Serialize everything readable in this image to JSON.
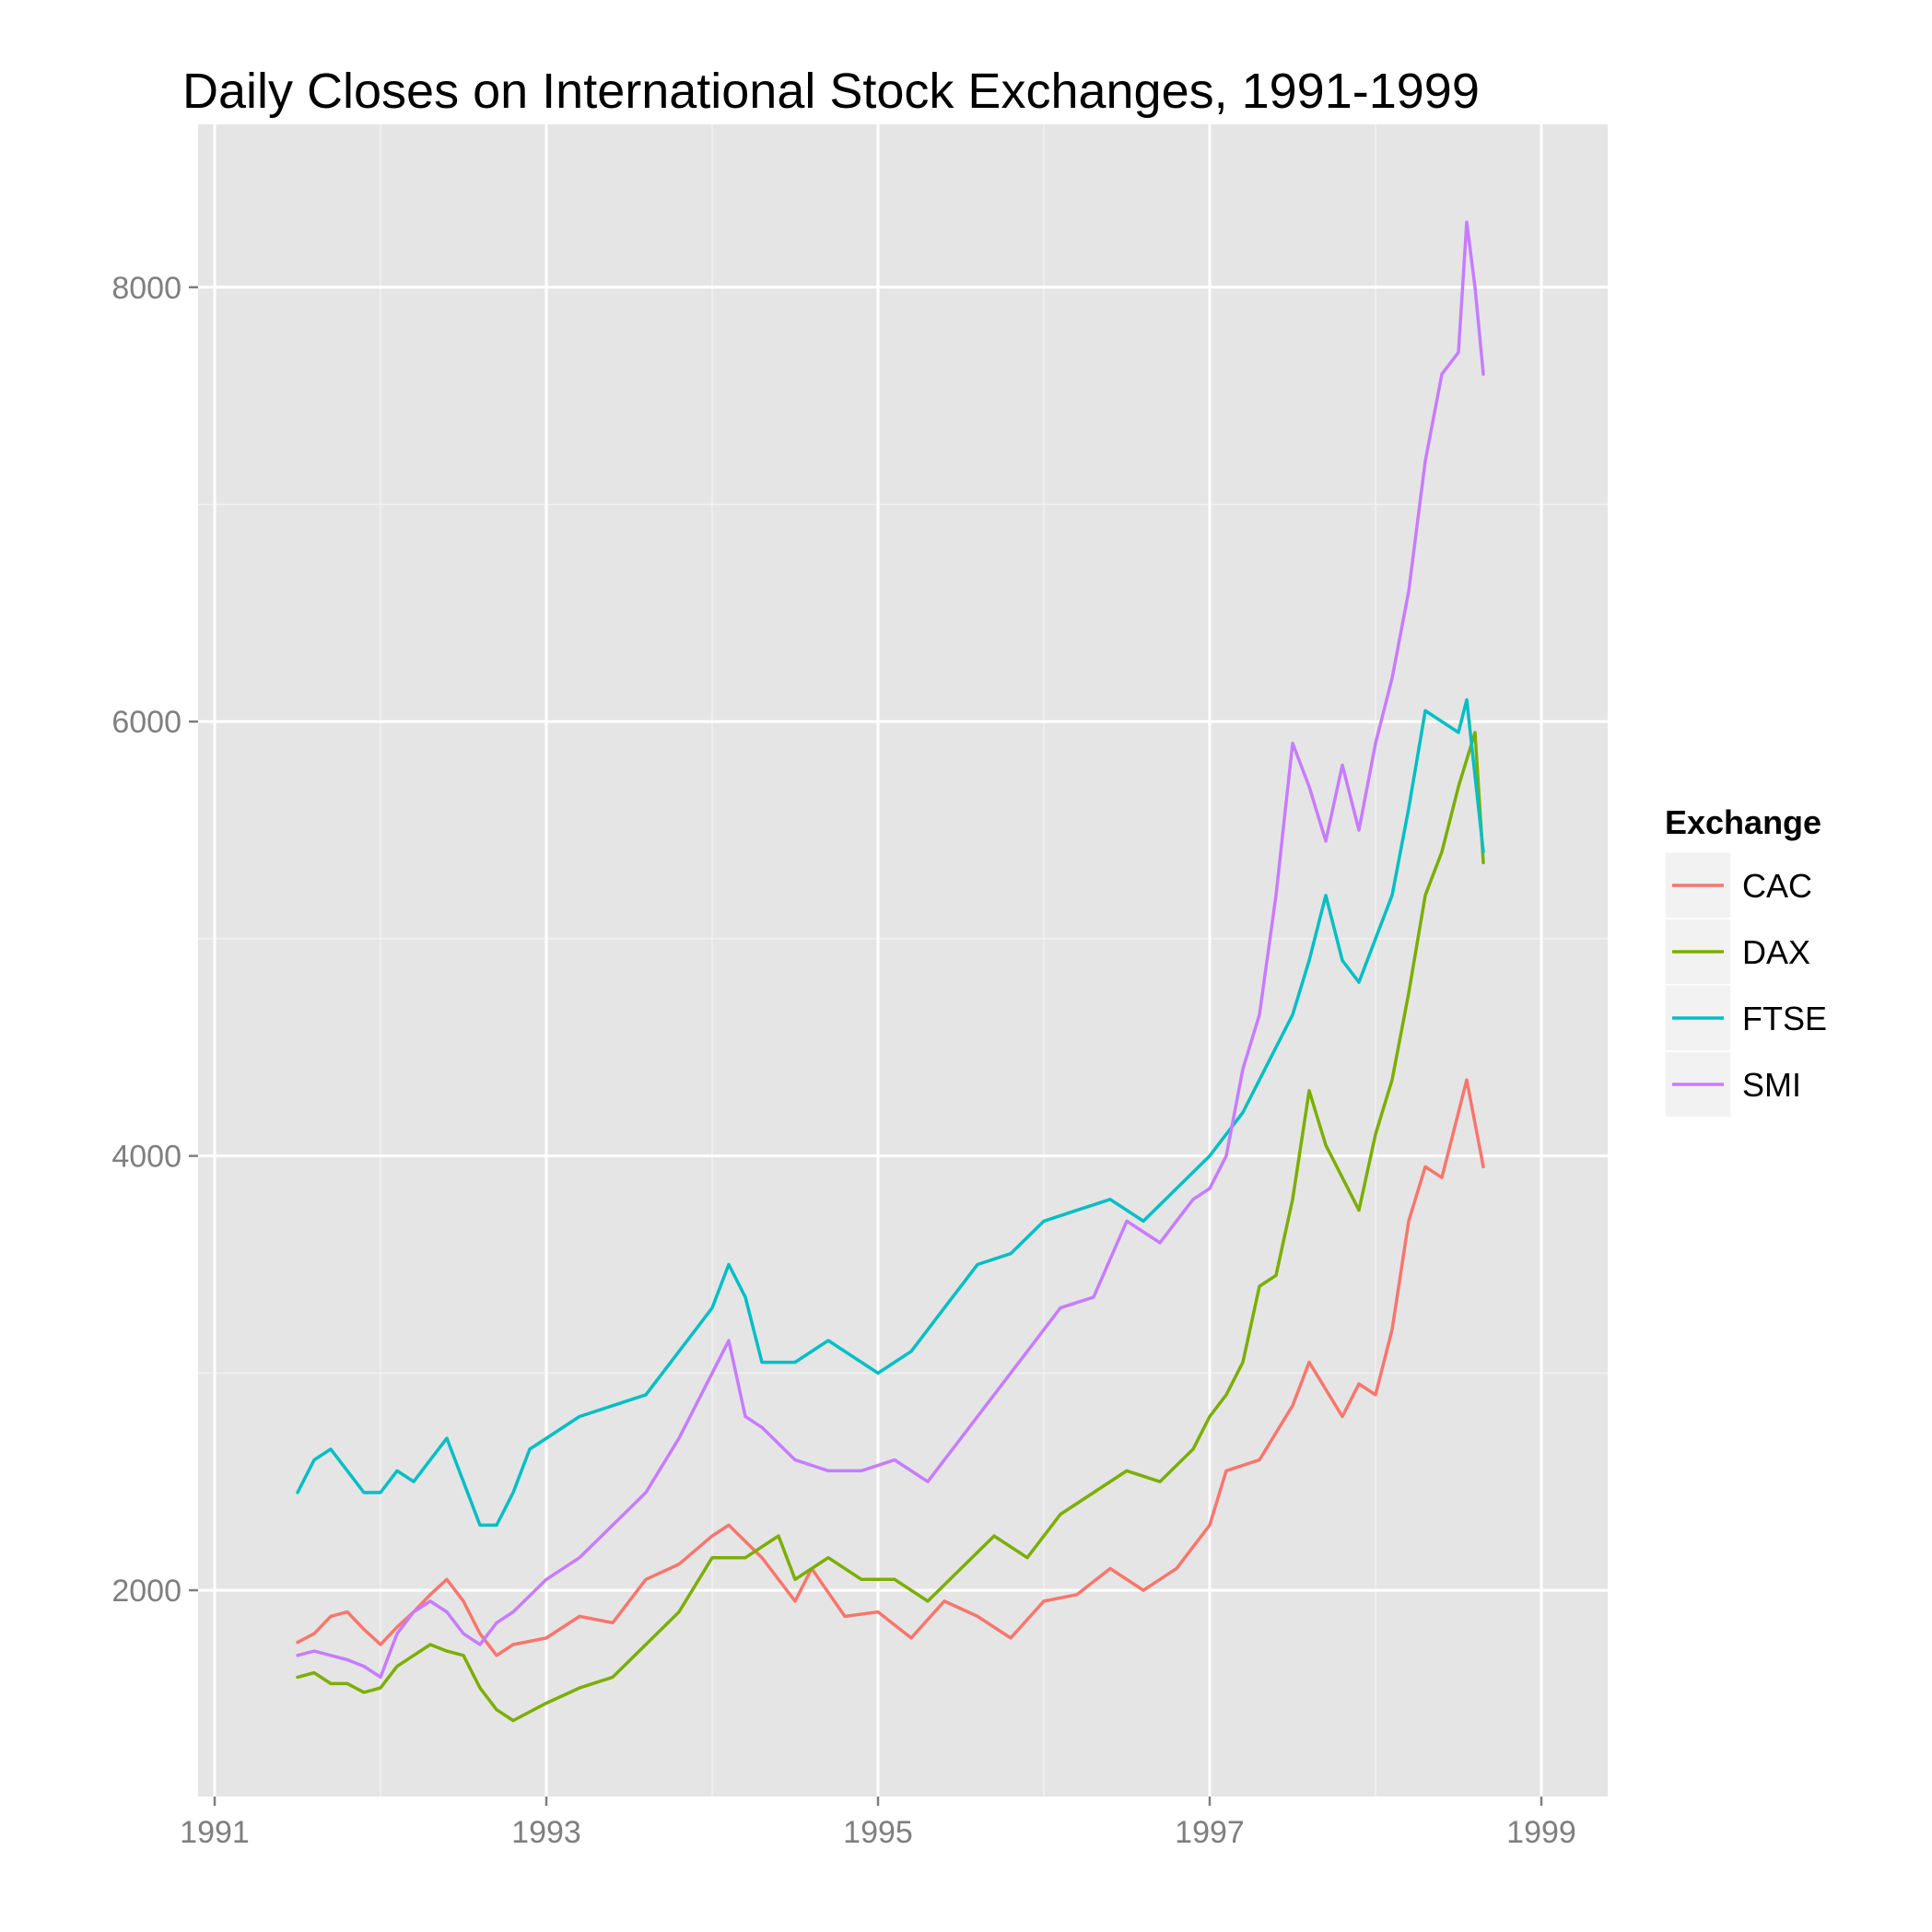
{
  "chart_data": {
    "type": "line",
    "title": "Daily Closes on International Stock Exchanges, 1991-1999",
    "xlabel": "",
    "ylabel": "",
    "xlim": [
      1990.9,
      1999.4
    ],
    "ylim": [
      1050,
      8750
    ],
    "x_ticks": [
      1991,
      1993,
      1995,
      1997,
      1999
    ],
    "x_tick_labels": [
      "1991",
      "1993",
      "1995",
      "1997",
      "1999"
    ],
    "y_ticks": [
      2000,
      4000,
      6000,
      8000
    ],
    "y_tick_labels": [
      "2000",
      "4000",
      "6000",
      "8000"
    ],
    "grid": true,
    "legend": {
      "title": "Exchange",
      "position": "right"
    },
    "series": [
      {
        "name": "CAC",
        "color": "#F8766D",
        "x": [
          1991.5,
          1991.6,
          1991.7,
          1991.8,
          1991.9,
          1992.0,
          1992.1,
          1992.2,
          1992.3,
          1992.4,
          1992.5,
          1992.6,
          1992.7,
          1992.8,
          1993.0,
          1993.2,
          1993.4,
          1993.6,
          1993.8,
          1994.0,
          1994.1,
          1994.3,
          1994.5,
          1994.6,
          1994.8,
          1995.0,
          1995.2,
          1995.4,
          1995.6,
          1995.8,
          1996.0,
          1996.2,
          1996.4,
          1996.6,
          1996.8,
          1997.0,
          1997.1,
          1997.3,
          1997.5,
          1997.6,
          1997.8,
          1997.9,
          1998.0,
          1998.1,
          1998.2,
          1998.3,
          1998.4,
          1998.5,
          1998.55,
          1998.6,
          1998.65
        ],
        "y": [
          1760,
          1800,
          1880,
          1900,
          1820,
          1750,
          1830,
          1900,
          1980,
          2050,
          1950,
          1800,
          1700,
          1750,
          1780,
          1880,
          1850,
          2050,
          2120,
          2250,
          2300,
          2150,
          1950,
          2100,
          1880,
          1900,
          1780,
          1950,
          1880,
          1780,
          1950,
          1980,
          2100,
          2000,
          2100,
          2300,
          2550,
          2600,
          2850,
          3050,
          2800,
          2950,
          2900,
          3200,
          3700,
          3950,
          3900,
          4200,
          4350,
          4150,
          3950
        ]
      },
      {
        "name": "DAX",
        "color": "#7CAE00",
        "x": [
          1991.5,
          1991.6,
          1991.7,
          1991.8,
          1991.9,
          1992.0,
          1992.1,
          1992.2,
          1992.3,
          1992.4,
          1992.5,
          1992.6,
          1992.7,
          1992.8,
          1993.0,
          1993.2,
          1993.4,
          1993.6,
          1993.8,
          1994.0,
          1994.2,
          1994.4,
          1994.5,
          1994.7,
          1994.9,
          1995.1,
          1995.3,
          1995.5,
          1995.7,
          1995.9,
          1996.1,
          1996.3,
          1996.5,
          1996.7,
          1996.9,
          1997.0,
          1997.1,
          1997.2,
          1997.3,
          1997.4,
          1997.5,
          1997.6,
          1997.7,
          1997.8,
          1997.9,
          1998.0,
          1998.1,
          1998.2,
          1998.3,
          1998.4,
          1998.5,
          1998.6,
          1998.65
        ],
        "y": [
          1600,
          1620,
          1570,
          1570,
          1530,
          1550,
          1650,
          1700,
          1750,
          1720,
          1700,
          1550,
          1450,
          1400,
          1480,
          1550,
          1600,
          1750,
          1900,
          2150,
          2150,
          2250,
          2050,
          2150,
          2050,
          2050,
          1950,
          2100,
          2250,
          2150,
          2350,
          2450,
          2550,
          2500,
          2650,
          2800,
          2900,
          3050,
          3400,
          3450,
          3800,
          4300,
          4050,
          3900,
          3750,
          4100,
          4350,
          4750,
          5200,
          5400,
          5700,
          5950,
          5350
        ]
      },
      {
        "name": "FTSE",
        "color": "#00BFC4",
        "x": [
          1991.5,
          1991.6,
          1991.7,
          1991.8,
          1991.9,
          1992.0,
          1992.1,
          1992.2,
          1992.3,
          1992.4,
          1992.5,
          1992.6,
          1992.7,
          1992.8,
          1992.9,
          1993.0,
          1993.2,
          1993.4,
          1993.6,
          1993.8,
          1994.0,
          1994.1,
          1994.2,
          1994.3,
          1994.5,
          1994.7,
          1994.8,
          1995.0,
          1995.2,
          1995.4,
          1995.6,
          1995.8,
          1996.0,
          1996.2,
          1996.4,
          1996.6,
          1996.8,
          1997.0,
          1997.2,
          1997.3,
          1997.5,
          1997.6,
          1997.7,
          1997.8,
          1997.9,
          1998.0,
          1998.1,
          1998.2,
          1998.3,
          1998.4,
          1998.5,
          1998.55,
          1998.6,
          1998.65
        ],
        "y": [
          2450,
          2600,
          2650,
          2550,
          2450,
          2450,
          2550,
          2500,
          2600,
          2700,
          2500,
          2300,
          2300,
          2450,
          2650,
          2700,
          2800,
          2850,
          2900,
          3100,
          3300,
          3500,
          3350,
          3050,
          3050,
          3150,
          3100,
          3000,
          3100,
          3300,
          3500,
          3550,
          3700,
          3750,
          3800,
          3700,
          3850,
          4000,
          4200,
          4350,
          4650,
          4900,
          5200,
          4900,
          4800,
          5000,
          5200,
          5600,
          6050,
          6000,
          5950,
          6100,
          5750,
          5400
        ]
      },
      {
        "name": "SMI",
        "color": "#C77CFF",
        "x": [
          1991.5,
          1991.6,
          1991.7,
          1991.8,
          1991.9,
          1992.0,
          1992.1,
          1992.2,
          1992.3,
          1992.4,
          1992.5,
          1992.6,
          1992.7,
          1992.8,
          1993.0,
          1993.2,
          1993.4,
          1993.6,
          1993.8,
          1994.0,
          1994.1,
          1994.2,
          1994.3,
          1994.5,
          1994.7,
          1994.9,
          1995.1,
          1995.3,
          1995.5,
          1995.7,
          1995.9,
          1996.1,
          1996.3,
          1996.5,
          1996.7,
          1996.9,
          1997.0,
          1997.1,
          1997.2,
          1997.3,
          1997.4,
          1997.5,
          1997.6,
          1997.7,
          1997.8,
          1997.9,
          1998.0,
          1998.1,
          1998.2,
          1998.3,
          1998.4,
          1998.5,
          1998.55,
          1998.6,
          1998.65
        ],
        "y": [
          1700,
          1720,
          1700,
          1680,
          1650,
          1600,
          1800,
          1900,
          1950,
          1900,
          1800,
          1750,
          1850,
          1900,
          2050,
          2150,
          2300,
          2450,
          2700,
          3000,
          3150,
          2800,
          2750,
          2600,
          2550,
          2550,
          2600,
          2500,
          2700,
          2900,
          3100,
          3300,
          3350,
          3700,
          3600,
          3800,
          3850,
          4000,
          4400,
          4650,
          5200,
          5900,
          5700,
          5450,
          5800,
          5500,
          5900,
          6200,
          6600,
          7200,
          7600,
          7700,
          8300,
          8000,
          7600
        ]
      }
    ]
  }
}
